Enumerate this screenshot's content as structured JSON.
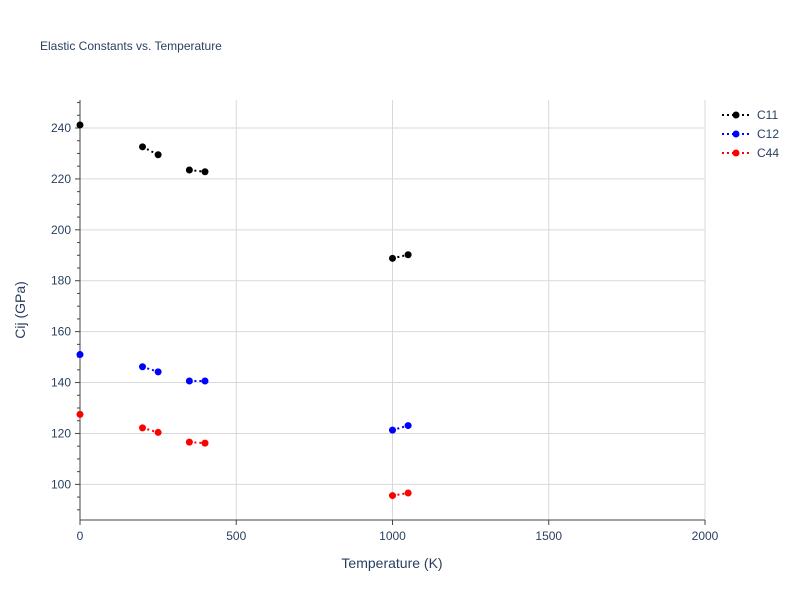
{
  "chart_data": {
    "type": "scatter",
    "title": "Elastic Constants vs. Temperature",
    "xlabel": "Temperature (K)",
    "ylabel": "Cij (GPa)",
    "xlim": [
      0,
      2000
    ],
    "ylim": [
      86,
      251
    ],
    "x_ticks": [
      0,
      500,
      1000,
      1500,
      2000
    ],
    "y_ticks": [
      100,
      120,
      140,
      160,
      180,
      200,
      220,
      240
    ],
    "grid": true,
    "legend_position": "top-right",
    "line_style": "dotted",
    "series": [
      {
        "name": "C11",
        "color": "#000000",
        "segments": [
          [
            [
              0,
              241.2
            ]
          ],
          [
            [
              200,
              232.6
            ],
            [
              250,
              229.5
            ]
          ],
          [
            [
              350,
              223.5
            ],
            [
              400,
              222.8
            ]
          ],
          [
            [
              1000,
              188.8
            ],
            [
              1050,
              190.2
            ]
          ]
        ]
      },
      {
        "name": "C12",
        "color": "#0000ff",
        "segments": [
          [
            [
              0,
              151.0
            ]
          ],
          [
            [
              200,
              146.2
            ],
            [
              250,
              144.2
            ]
          ],
          [
            [
              350,
              140.6
            ],
            [
              400,
              140.6
            ]
          ],
          [
            [
              1000,
              121.3
            ],
            [
              1050,
              123.1
            ]
          ]
        ]
      },
      {
        "name": "C44",
        "color": "#ff0000",
        "segments": [
          [
            [
              0,
              127.5
            ]
          ],
          [
            [
              200,
              122.2
            ],
            [
              250,
              120.4
            ]
          ],
          [
            [
              350,
              116.6
            ],
            [
              400,
              116.2
            ]
          ],
          [
            [
              1000,
              95.6
            ],
            [
              1050,
              96.6
            ]
          ]
        ]
      }
    ]
  }
}
